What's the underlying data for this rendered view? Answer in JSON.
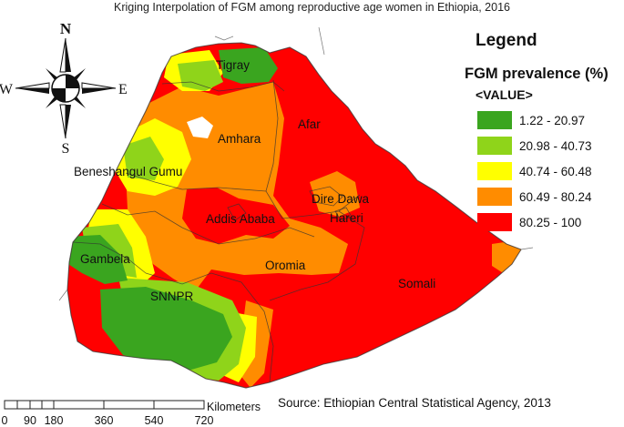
{
  "title": "Kriging Interpolation of FGM among reproductive age women in Ethiopia, 2016",
  "compass": {
    "north": "N",
    "south": "S",
    "east": "E",
    "west": "W"
  },
  "legend": {
    "heading": "Legend",
    "subheading": "FGM prevalence (%)",
    "field": "<VALUE>",
    "classes": [
      {
        "label": "1.22 - 20.97",
        "color": "#3aa51f"
      },
      {
        "label": "20.98 - 40.73",
        "color": "#8fd41a"
      },
      {
        "label": "40.74 - 60.48",
        "color": "#ffff00"
      },
      {
        "label": "60.49 - 80.24",
        "color": "#ff8c00"
      },
      {
        "label": "80.25 - 100",
        "color": "#ff0000"
      }
    ]
  },
  "regions": {
    "tigray": "Tigray",
    "afar": "Afar",
    "amhara": "Amhara",
    "beneshangul": "Beneshangul Gumu",
    "dire_dawa": "Dire Dawa",
    "hareri": "Hareri",
    "addis_ababa": "Addis Ababa",
    "gambela": "Gambela",
    "oromia": "Oromia",
    "somali": "Somali",
    "snnpr": "SNNPR"
  },
  "scale_bar": {
    "unit": "Kilometers",
    "ticks": [
      "0",
      "90",
      "180",
      "360",
      "540",
      "720"
    ]
  },
  "source": "Source: Ethiopian Central Statistical Agency, 2013"
}
